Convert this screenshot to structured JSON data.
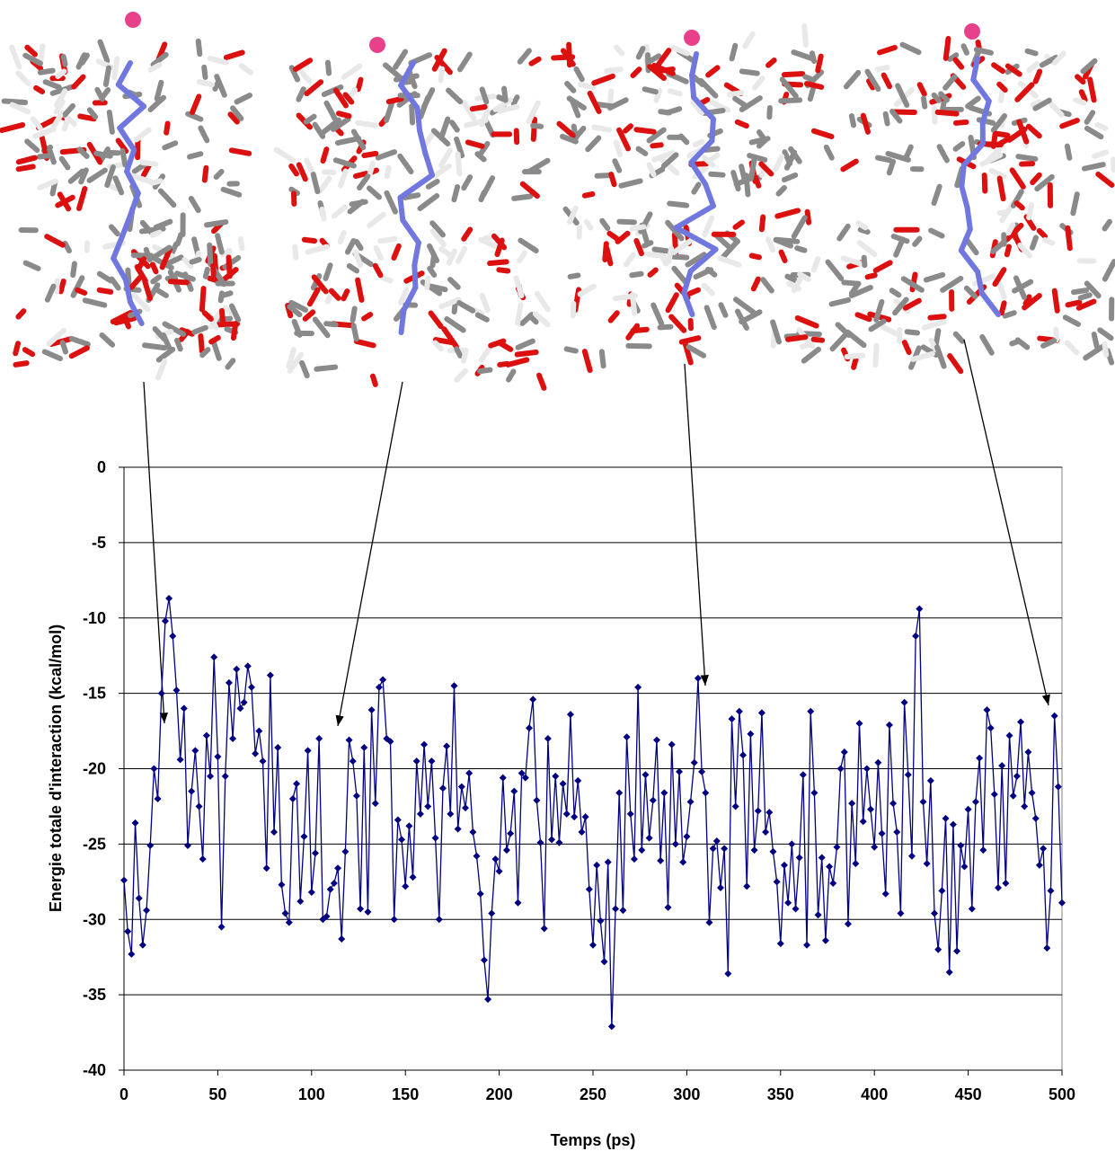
{
  "chart_data": {
    "type": "line",
    "xlabel": "Temps (ps)",
    "ylabel": "Energie totale d'interaction (kcal/mol)",
    "x": [
      0,
      2,
      4,
      6,
      8,
      10,
      12,
      14,
      16,
      18,
      20,
      22,
      24,
      26,
      28,
      30,
      32,
      34,
      36,
      38,
      40,
      42,
      44,
      46,
      48,
      50,
      52,
      54,
      56,
      58,
      60,
      62,
      64,
      66,
      68,
      70,
      72,
      74,
      76,
      78,
      80,
      82,
      84,
      86,
      88,
      90,
      92,
      94,
      96,
      98,
      100,
      102,
      104,
      106,
      108,
      110,
      112,
      114,
      116,
      118,
      120,
      122,
      124,
      126,
      128,
      130,
      132,
      134,
      136,
      138,
      140,
      142,
      144,
      146,
      148,
      150,
      152,
      154,
      156,
      158,
      160,
      162,
      164,
      166,
      168,
      170,
      172,
      174,
      176,
      178,
      180,
      182,
      184,
      186,
      188,
      190,
      192,
      194,
      196,
      198,
      200,
      202,
      204,
      206,
      208,
      210,
      212,
      214,
      216,
      218,
      220,
      222,
      224,
      226,
      228,
      230,
      232,
      234,
      236,
      238,
      240,
      242,
      244,
      246,
      248,
      250,
      252,
      254,
      256,
      258,
      260,
      262,
      264,
      266,
      268,
      270,
      272,
      274,
      276,
      278,
      280,
      282,
      284,
      286,
      288,
      290,
      292,
      294,
      296,
      298,
      300,
      302,
      304,
      306,
      308,
      310,
      312,
      314,
      316,
      318,
      320,
      322,
      324,
      326,
      328,
      330,
      332,
      334,
      336,
      338,
      340,
      342,
      344,
      346,
      348,
      350,
      352,
      354,
      356,
      358,
      360,
      362,
      364,
      366,
      368,
      370,
      372,
      374,
      376,
      378,
      380,
      382,
      384,
      386,
      388,
      390,
      392,
      394,
      396,
      398,
      400,
      402,
      404,
      406,
      408,
      410,
      412,
      414,
      416,
      418,
      420,
      422,
      424,
      426,
      428,
      430,
      432,
      434,
      436,
      438,
      440,
      442,
      444,
      446,
      448,
      450,
      452,
      454,
      456,
      458,
      460,
      462,
      464,
      466,
      468,
      470,
      472,
      474,
      476,
      478,
      480,
      482,
      484,
      486,
      488,
      490,
      492,
      494,
      496,
      498,
      500
    ],
    "series": [
      {
        "color": "#000080",
        "values": [
          -27.4,
          -30.8,
          -32.3,
          -23.6,
          -28.6,
          -31.7,
          -29.4,
          -25.1,
          -20.0,
          -22.0,
          -15.0,
          -10.2,
          -8.7,
          -11.2,
          -14.8,
          -19.4,
          -16.0,
          -25.1,
          -21.5,
          -18.8,
          -22.5,
          -26.0,
          -17.8,
          -20.5,
          -12.6,
          -19.2,
          -30.5,
          -20.5,
          -14.3,
          -18.0,
          -13.4,
          -16.0,
          -15.6,
          -13.2,
          -14.6,
          -19.0,
          -17.5,
          -19.5,
          -26.6,
          -13.8,
          -24.2,
          -18.6,
          -27.7,
          -29.6,
          -30.2,
          -22.0,
          -21.0,
          -28.8,
          -24.5,
          -18.8,
          -28.2,
          -25.6,
          -18.0,
          -30.0,
          -29.8,
          -28.0,
          -27.6,
          -26.6,
          -31.3,
          -25.5,
          -18.1,
          -19.5,
          -21.8,
          -29.3,
          -18.6,
          -29.5,
          -16.1,
          -22.3,
          -14.6,
          -14.1,
          -18.0,
          -18.2,
          -30.0,
          -23.4,
          -24.7,
          -27.8,
          -23.8,
          -27.2,
          -19.5,
          -23.0,
          -18.4,
          -22.5,
          -19.5,
          -24.6,
          -30.0,
          -21.3,
          -18.5,
          -23.0,
          -14.5,
          -24.0,
          -21.2,
          -22.6,
          -20.3,
          -24.2,
          -25.8,
          -28.3,
          -32.7,
          -35.3,
          -29.6,
          -26.0,
          -26.8,
          -20.6,
          -25.4,
          -24.3,
          -21.5,
          -28.9,
          -20.3,
          -20.6,
          -17.3,
          -15.4,
          -22.1,
          -24.9,
          -30.6,
          -18.0,
          -24.7,
          -20.5,
          -24.9,
          -21.0,
          -23.0,
          -16.4,
          -23.2,
          -20.8,
          -24.2,
          -23.2,
          -28.0,
          -31.7,
          -26.4,
          -30.1,
          -32.8,
          -26.2,
          -37.1,
          -29.3,
          -21.6,
          -29.4,
          -17.9,
          -23.0,
          -26.0,
          -14.6,
          -25.4,
          -20.4,
          -24.6,
          -22.1,
          -18.1,
          -26.1,
          -21.6,
          -29.2,
          -18.4,
          -25.0,
          -20.2,
          -26.2,
          -24.5,
          -22.2,
          -19.6,
          -14.0,
          -20.2,
          -21.6,
          -30.2,
          -25.3,
          -24.8,
          -27.9,
          -25.3,
          -33.6,
          -16.7,
          -22.5,
          -16.2,
          -19.1,
          -27.8,
          -17.7,
          -25.4,
          -22.8,
          -16.3,
          -24.2,
          -22.9,
          -25.5,
          -27.5,
          -31.6,
          -26.4,
          -28.9,
          -25.0,
          -29.3,
          -25.9,
          -20.4,
          -31.7,
          -16.2,
          -21.6,
          -29.7,
          -25.9,
          -31.4,
          -26.5,
          -27.6,
          -25.2,
          -20.0,
          -18.9,
          -30.3,
          -22.3,
          -26.3,
          -17.0,
          -23.5,
          -20.0,
          -22.7,
          -25.2,
          -19.6,
          -24.3,
          -28.3,
          -17.1,
          -22.3,
          -24.2,
          -29.6,
          -15.6,
          -20.4,
          -25.8,
          -11.2,
          -9.4,
          -22.2,
          -26.3,
          -20.8,
          -29.6,
          -32.0,
          -28.1,
          -23.3,
          -33.5,
          -23.7,
          -32.1,
          -25.1,
          -26.5,
          -22.7,
          -29.3,
          -22.2,
          -19.3,
          -25.4,
          -16.1,
          -17.3,
          -21.7,
          -27.9,
          -19.8,
          -27.6,
          -17.8,
          -21.8,
          -20.5,
          -16.9,
          -22.5,
          -18.9,
          -21.6,
          -23.3,
          -26.4,
          -25.3,
          -31.9,
          -28.1,
          -16.5,
          -21.2,
          -28.9
        ]
      }
    ],
    "xlim": [
      0,
      500
    ],
    "xticks": [
      0,
      50,
      100,
      150,
      200,
      250,
      300,
      350,
      400,
      450,
      500
    ],
    "ylim": [
      -40,
      0
    ],
    "yticks": [
      -40,
      -35,
      -30,
      -25,
      -20,
      -15,
      -10,
      -5,
      0
    ],
    "grid": true,
    "marker": "diamond"
  }
}
